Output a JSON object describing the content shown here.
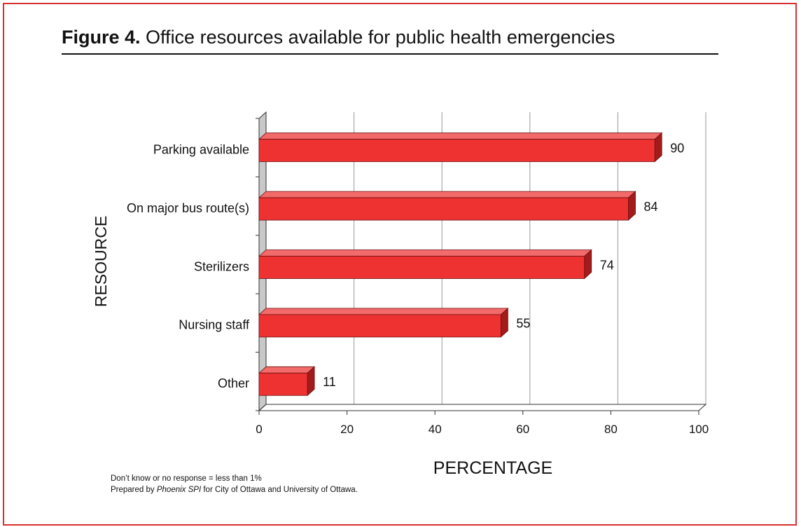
{
  "figure": {
    "label": "Figure 4.",
    "title": "Office resources available for public health emergencies"
  },
  "notes": {
    "line1": "Don’t know or no response = less than 1%",
    "line2_prefix": "Prepared by",
    "line2_source": "Phoenix SPI",
    "line2_suffix": "for City of Ottawa and University of Ottawa."
  },
  "colors": {
    "frame": "#d6312f",
    "bar_front": "#ee3232",
    "bar_top": "#f36a6a",
    "bar_side": "#a31b1b",
    "wall": "#c8c8c8",
    "grid": "#999999"
  },
  "chart_data": {
    "type": "bar",
    "orientation": "horizontal",
    "style": "3d",
    "categories": [
      "Parking available",
      "On major bus route(s)",
      "Sterilizers",
      "Nursing staff",
      "Other"
    ],
    "values": [
      90,
      84,
      74,
      55,
      11
    ],
    "data_labels": [
      "90",
      "84",
      "74",
      "55",
      "11"
    ],
    "xlabel": "PERCENTAGE",
    "ylabel": "RESOURCE",
    "xlim": [
      0,
      100
    ],
    "xticks": [
      "0",
      "20",
      "40",
      "60",
      "80",
      "100"
    ],
    "grid": true,
    "legend": "none"
  }
}
